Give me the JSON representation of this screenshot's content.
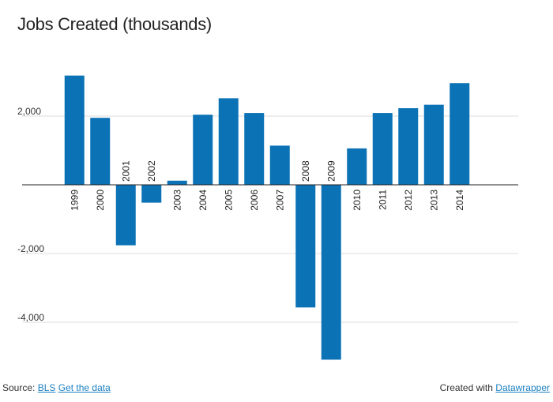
{
  "chart_data": {
    "type": "bar",
    "title": "Jobs Created (thousands)",
    "xlabel": "",
    "ylabel": "",
    "categories": [
      "1999",
      "2000",
      "2001",
      "2002",
      "2003",
      "2004",
      "2005",
      "2006",
      "2007",
      "2008",
      "2009",
      "2010",
      "2011",
      "2012",
      "2013",
      "2014"
    ],
    "values": [
      3180,
      1950,
      -1760,
      -520,
      120,
      2040,
      2520,
      2090,
      1140,
      -3570,
      -5090,
      1060,
      2090,
      2230,
      2330,
      2960
    ],
    "ylim": [
      -5200,
      3400
    ],
    "yticks": [
      2000,
      -2000,
      -4000
    ],
    "ytick_labels": [
      "2,000",
      "-2,000",
      "-4,000"
    ],
    "bar_color": "#0b72b5",
    "grid": true
  },
  "footer": {
    "source_label": "Source:",
    "source_link": "BLS",
    "data_link": "Get the data",
    "created_label": "Created with",
    "created_link": "Datawrapper"
  },
  "colors": {
    "link": "#1d81c2",
    "grid": "#dddddd",
    "axis": "#222222"
  }
}
